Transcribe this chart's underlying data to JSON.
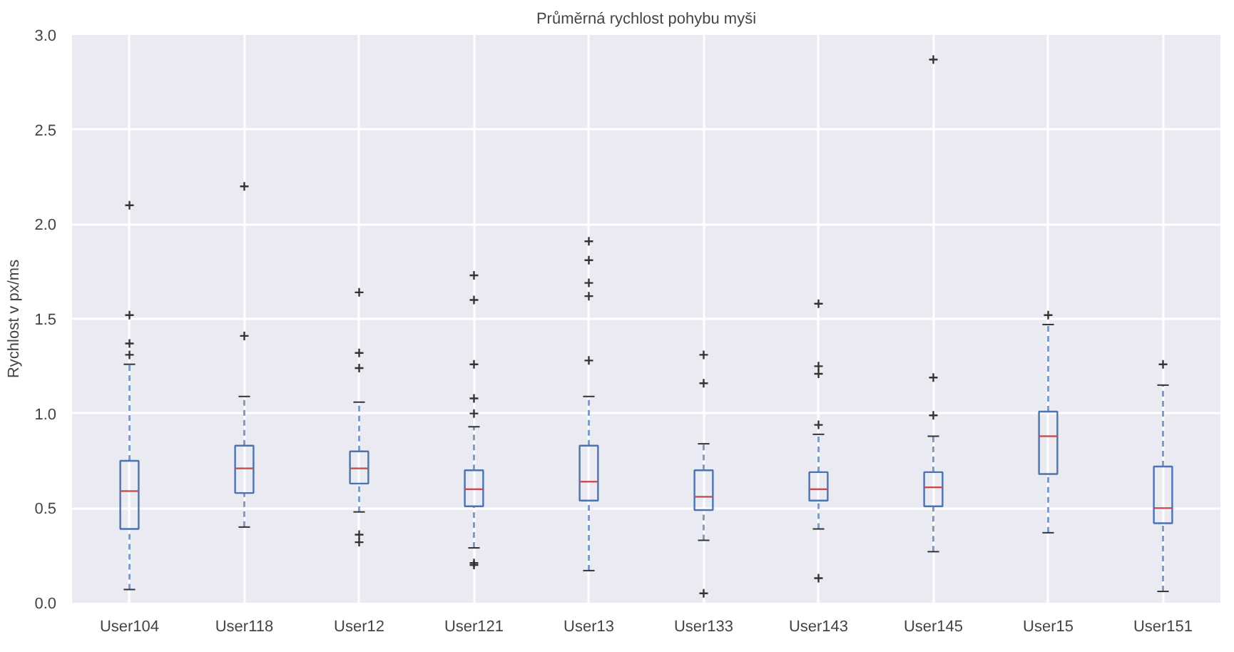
{
  "chart_data": {
    "type": "box",
    "title": "Průměrná rychlost pohybu myši",
    "ylabel": "Rychlost v px/ms",
    "categories": [
      "User104",
      "User118",
      "User12",
      "User121",
      "User13",
      "User133",
      "User143",
      "User145",
      "User15",
      "User151"
    ],
    "color": "#4c72b0",
    "boxes": [
      {
        "low": 0.07,
        "q1": 0.39,
        "median": 0.59,
        "q3": 0.75,
        "high": 1.26,
        "outliers": [
          1.31,
          1.37,
          1.52,
          2.1
        ]
      },
      {
        "low": 0.4,
        "q1": 0.58,
        "median": 0.71,
        "q3": 0.83,
        "high": 1.09,
        "outliers": [
          1.41,
          2.2
        ]
      },
      {
        "low": 0.48,
        "q1": 0.63,
        "median": 0.71,
        "q3": 0.8,
        "high": 1.06,
        "outliers": [
          0.32,
          0.36,
          1.24,
          1.32,
          1.64
        ]
      },
      {
        "low": 0.29,
        "q1": 0.51,
        "median": 0.6,
        "q3": 0.7,
        "high": 0.93,
        "outliers": [
          0.2,
          0.21,
          1.0,
          1.08,
          1.26,
          1.6,
          1.73
        ]
      },
      {
        "low": 0.17,
        "q1": 0.54,
        "median": 0.64,
        "q3": 0.83,
        "high": 1.09,
        "outliers": [
          1.28,
          1.62,
          1.69,
          1.81,
          1.91
        ]
      },
      {
        "low": 0.33,
        "q1": 0.49,
        "median": 0.56,
        "q3": 0.7,
        "high": 0.84,
        "outliers": [
          0.05,
          1.16,
          1.31
        ]
      },
      {
        "low": 0.39,
        "q1": 0.54,
        "median": 0.6,
        "q3": 0.69,
        "high": 0.89,
        "outliers": [
          0.13,
          0.94,
          1.21,
          1.25,
          1.58
        ]
      },
      {
        "low": 0.27,
        "q1": 0.51,
        "median": 0.61,
        "q3": 0.69,
        "high": 0.88,
        "outliers": [
          0.99,
          1.19,
          2.87
        ]
      },
      {
        "low": 0.37,
        "q1": 0.68,
        "median": 0.88,
        "q3": 1.01,
        "high": 1.47,
        "outliers": [
          1.52
        ]
      },
      {
        "low": 0.06,
        "q1": 0.42,
        "median": 0.5,
        "q3": 0.72,
        "high": 1.15,
        "outliers": [
          1.26
        ]
      }
    ],
    "ylim": [
      0,
      3.0
    ],
    "yticks": [
      {
        "value": 0,
        "label": "0.0"
      },
      {
        "value": 0.5,
        "label": "0.5"
      },
      {
        "value": 1,
        "label": "1.0"
      },
      {
        "value": 1.5,
        "label": "1.5"
      },
      {
        "value": 2,
        "label": "2.0"
      },
      {
        "value": 2.5,
        "label": "2.5"
      },
      {
        "value": 3,
        "label": "3.0"
      }
    ],
    "grid": true,
    "marker": "cross",
    "line_style": "dashed"
  }
}
